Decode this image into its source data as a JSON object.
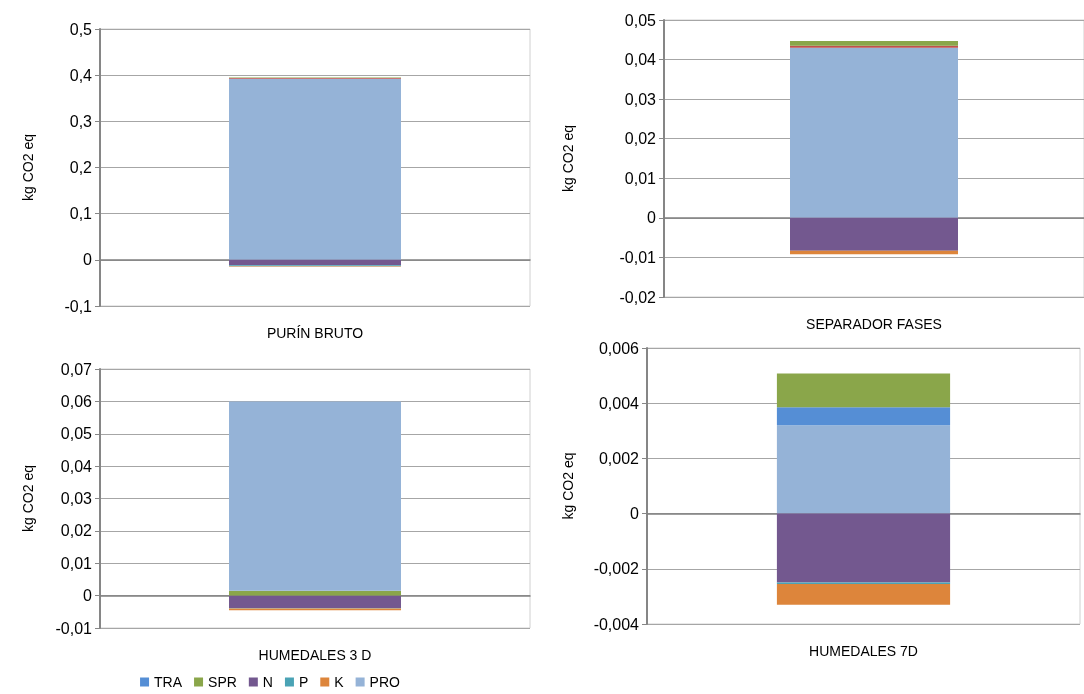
{
  "chart_data": [
    {
      "type": "bar",
      "stacked": true,
      "categories": [
        "PURÍN BRUTO"
      ],
      "ylabel": "kg CO2 eq",
      "ylim": [
        -0.1,
        0.5
      ],
      "yticks": [
        {
          "value": -0.1,
          "label": "-0,1"
        },
        {
          "value": 0,
          "label": "0"
        },
        {
          "value": 0.1,
          "label": "0,1"
        },
        {
          "value": 0.2,
          "label": "0,2"
        },
        {
          "value": 0.3,
          "label": "0,3"
        },
        {
          "value": 0.4,
          "label": "0,4"
        },
        {
          "value": 0.5,
          "label": "0,5"
        }
      ],
      "grid": "y",
      "legend": false,
      "series": [
        {
          "color": "#95b3d7",
          "values": [
            0.392
          ]
        },
        {
          "color": "#c0504d",
          "values": [
            0.002
          ]
        },
        {
          "color": "#8aa64a",
          "values": [
            0.001
          ]
        },
        {
          "color": "#73588f",
          "values": [
            -0.012
          ]
        },
        {
          "color": "#4aa3b5",
          "values": [
            -0.002
          ]
        },
        {
          "color": "#dd853b",
          "values": [
            -0.001
          ]
        }
      ]
    },
    {
      "type": "bar",
      "stacked": true,
      "categories": [
        "SEPARADOR FASES"
      ],
      "ylabel": "kg CO2 eq",
      "ylim": [
        -0.02,
        0.05
      ],
      "yticks": [
        {
          "value": -0.02,
          "label": "-0,02"
        },
        {
          "value": -0.01,
          "label": "-0,01"
        },
        {
          "value": 0,
          "label": "0"
        },
        {
          "value": 0.01,
          "label": "0,01"
        },
        {
          "value": 0.02,
          "label": "0,02"
        },
        {
          "value": 0.03,
          "label": "0,03"
        },
        {
          "value": 0.04,
          "label": "0,04"
        },
        {
          "value": 0.05,
          "label": "0,05"
        }
      ],
      "grid": "y",
      "legend": false,
      "series": [
        {
          "color": "#95b3d7",
          "values": [
            0.043
          ]
        },
        {
          "color": "#c0504d",
          "values": [
            0.0005
          ]
        },
        {
          "color": "#8aa64a",
          "values": [
            0.0012
          ]
        },
        {
          "color": "#73588f",
          "values": [
            -0.0083
          ]
        },
        {
          "color": "#4aa3b5",
          "values": [
            null
          ]
        },
        {
          "color": "#dd853b",
          "values": [
            -0.0009
          ]
        }
      ]
    },
    {
      "type": "bar",
      "stacked": true,
      "categories": [
        "HUMEDALES 3 D"
      ],
      "ylabel": "kg CO2 eq",
      "ylim": [
        -0.01,
        0.07
      ],
      "yticks": [
        {
          "value": -0.01,
          "label": "-0,01"
        },
        {
          "value": 0,
          "label": "0"
        },
        {
          "value": 0.01,
          "label": "0,01"
        },
        {
          "value": 0.02,
          "label": "0,02"
        },
        {
          "value": 0.03,
          "label": "0,03"
        },
        {
          "value": 0.04,
          "label": "0,04"
        },
        {
          "value": 0.05,
          "label": "0,05"
        },
        {
          "value": 0.06,
          "label": "0,06"
        },
        {
          "value": 0.07,
          "label": "0,07"
        }
      ],
      "grid": "y",
      "legend": "bottom",
      "series": [
        {
          "name": "TRA",
          "color": "#558ed5",
          "values": [
            0
          ]
        },
        {
          "name": "SPR",
          "color": "#8aa64a",
          "values": [
            0.0015
          ]
        },
        {
          "name": "N",
          "color": "#73588f",
          "values": [
            -0.0038
          ]
        },
        {
          "name": "P",
          "color": "#4aa3b5",
          "values": [
            -0.0002
          ]
        },
        {
          "name": "K",
          "color": "#dd853b",
          "values": [
            -0.0005
          ]
        },
        {
          "name": "PRO",
          "color": "#95b3d7",
          "values": [
            0.0585
          ]
        }
      ]
    },
    {
      "type": "bar",
      "stacked": true,
      "categories": [
        "HUMEDALES 7D"
      ],
      "ylabel": "kg CO2 eq",
      "ylim": [
        -0.004,
        0.006
      ],
      "yticks": [
        {
          "value": -0.004,
          "label": "-0,004"
        },
        {
          "value": -0.002,
          "label": "-0,002"
        },
        {
          "value": 0,
          "label": "0"
        },
        {
          "value": 0.002,
          "label": "0,002"
        },
        {
          "value": 0.004,
          "label": "0,004"
        },
        {
          "value": 0.006,
          "label": "0,006"
        }
      ],
      "grid": "y",
      "legend": false,
      "series": [
        {
          "color": "#95b3d7",
          "values": [
            0.0032
          ]
        },
        {
          "color": "#558ed5",
          "values": [
            0.00065
          ]
        },
        {
          "color": "#8aa64a",
          "values": [
            0.00123
          ]
        },
        {
          "color": "#73588f",
          "values": [
            -0.0025
          ]
        },
        {
          "color": "#4aa3b5",
          "values": [
            -5e-05
          ]
        },
        {
          "color": "#dd853b",
          "values": [
            -0.00075
          ]
        }
      ]
    }
  ]
}
